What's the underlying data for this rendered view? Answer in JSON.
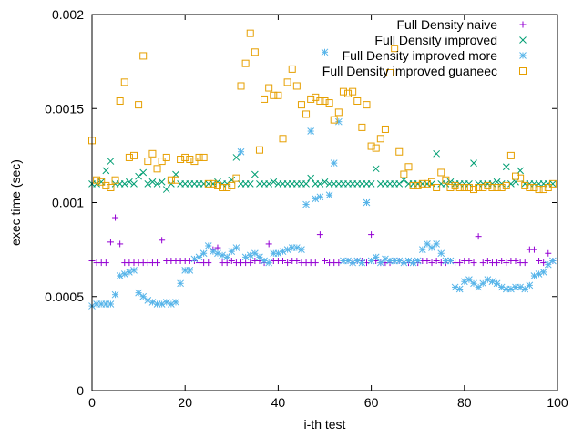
{
  "chart_data": {
    "type": "scatter",
    "title": "",
    "xlabel": "i-th test",
    "ylabel": "exec time (sec)",
    "xlim": [
      0,
      100
    ],
    "ylim": [
      0,
      0.002
    ],
    "x_ticks": [
      "0",
      "20",
      "40",
      "60",
      "80",
      "100"
    ],
    "y_ticks": [
      "0",
      "0.0005",
      "0.001",
      "0.0015",
      "0.002"
    ],
    "legend_position": "top-right",
    "grid": false,
    "x": [
      0,
      1,
      2,
      3,
      4,
      5,
      6,
      7,
      8,
      9,
      10,
      11,
      12,
      13,
      14,
      15,
      16,
      17,
      18,
      19,
      20,
      21,
      22,
      23,
      24,
      25,
      26,
      27,
      28,
      29,
      30,
      31,
      32,
      33,
      34,
      35,
      36,
      37,
      38,
      39,
      40,
      41,
      42,
      43,
      44,
      45,
      46,
      47,
      48,
      49,
      50,
      51,
      52,
      53,
      54,
      55,
      56,
      57,
      58,
      59,
      60,
      61,
      62,
      63,
      64,
      65,
      66,
      67,
      68,
      69,
      70,
      71,
      72,
      73,
      74,
      75,
      76,
      77,
      78,
      79,
      80,
      81,
      82,
      83,
      84,
      85,
      86,
      87,
      88,
      89,
      90,
      91,
      92,
      93,
      94,
      95,
      96,
      97,
      98,
      99
    ],
    "series": [
      {
        "name": "Full Density naive",
        "color": "#9400d3",
        "marker": "plus",
        "values": [
          0.00069,
          0.00068,
          0.00068,
          0.00068,
          0.00079,
          0.00092,
          0.00078,
          0.00068,
          0.00068,
          0.00068,
          0.00068,
          0.00068,
          0.00068,
          0.00068,
          0.00068,
          0.0008,
          0.00069,
          0.00069,
          0.00069,
          0.00069,
          0.00069,
          0.00069,
          0.00069,
          0.00068,
          0.00068,
          0.00068,
          0.00075,
          0.00076,
          0.00068,
          0.00068,
          0.00069,
          0.00068,
          0.00068,
          0.00068,
          0.00068,
          0.00069,
          0.00069,
          0.00068,
          0.00078,
          0.00069,
          0.00069,
          0.00069,
          0.00068,
          0.00069,
          0.00069,
          0.00068,
          0.00068,
          0.00068,
          0.00068,
          0.00083,
          0.00069,
          0.00068,
          0.00068,
          0.00068,
          0.00069,
          0.00069,
          0.00068,
          0.00069,
          0.00069,
          0.00068,
          0.00083,
          0.00069,
          0.00068,
          0.00068,
          0.00068,
          0.00069,
          0.00069,
          0.00068,
          0.00068,
          0.00068,
          0.00068,
          0.00069,
          0.00069,
          0.00068,
          0.00069,
          0.00068,
          0.00068,
          0.00069,
          0.00068,
          0.00068,
          0.00069,
          0.00069,
          0.00068,
          0.00082,
          0.00068,
          0.00069,
          0.00068,
          0.00068,
          0.00069,
          0.00068,
          0.00069,
          0.00069,
          0.00068,
          0.00068,
          0.00075,
          0.00075,
          0.00069,
          0.00068,
          0.00073,
          0.00069
        ]
      },
      {
        "name": "Full Density improved",
        "color": "#009e73",
        "marker": "cross",
        "values": [
          0.0011,
          0.0011,
          0.00111,
          0.00117,
          0.00122,
          0.0011,
          0.0011,
          0.0011,
          0.00111,
          0.0011,
          0.00114,
          0.00116,
          0.0011,
          0.00111,
          0.0011,
          0.00111,
          0.00107,
          0.0011,
          0.00115,
          0.0011,
          0.0011,
          0.0011,
          0.0011,
          0.0011,
          0.0011,
          0.0011,
          0.0011,
          0.00111,
          0.0011,
          0.0011,
          0.00112,
          0.00124,
          0.0011,
          0.0011,
          0.0011,
          0.00115,
          0.0011,
          0.0011,
          0.0011,
          0.00111,
          0.0011,
          0.0011,
          0.0011,
          0.0011,
          0.0011,
          0.0011,
          0.0011,
          0.00113,
          0.0011,
          0.0011,
          0.00111,
          0.0011,
          0.0011,
          0.0011,
          0.0011,
          0.0011,
          0.0011,
          0.0011,
          0.0011,
          0.0011,
          0.0011,
          0.00118,
          0.0011,
          0.0011,
          0.0011,
          0.0011,
          0.0011,
          0.00112,
          0.0011,
          0.0011,
          0.0011,
          0.0011,
          0.0011,
          0.0011,
          0.00126,
          0.0011,
          0.0011,
          0.00111,
          0.0011,
          0.0011,
          0.0011,
          0.0011,
          0.00121,
          0.0011,
          0.0011,
          0.0011,
          0.0011,
          0.00111,
          0.0011,
          0.00119,
          0.0011,
          0.00111,
          0.00117,
          0.0011,
          0.0011,
          0.0011,
          0.0011,
          0.0011,
          0.0011,
          0.0011
        ]
      },
      {
        "name": "Full Density improved more",
        "color": "#56b4e9",
        "marker": "star",
        "values": [
          0.00045,
          0.00046,
          0.00046,
          0.00046,
          0.00046,
          0.00051,
          0.00061,
          0.00062,
          0.00063,
          0.00064,
          0.00052,
          0.0005,
          0.00048,
          0.00047,
          0.00046,
          0.00046,
          0.00047,
          0.00046,
          0.00047,
          0.00057,
          0.00064,
          0.00064,
          0.0007,
          0.00071,
          0.00073,
          0.00077,
          0.00074,
          0.00073,
          0.00072,
          0.00071,
          0.00074,
          0.00076,
          0.00127,
          0.00071,
          0.00072,
          0.00073,
          0.00071,
          0.00069,
          0.00068,
          0.00073,
          0.00073,
          0.00074,
          0.00075,
          0.00076,
          0.00076,
          0.00075,
          0.00099,
          0.00138,
          0.00102,
          0.00103,
          0.0018,
          0.00104,
          0.00121,
          0.00143,
          0.00069,
          0.00069,
          0.00068,
          0.00069,
          0.00068,
          0.001,
          0.00069,
          0.00071,
          0.00068,
          0.0007,
          0.00069,
          0.00069,
          0.00069,
          0.00068,
          0.00069,
          0.00068,
          0.00069,
          0.00075,
          0.00078,
          0.00076,
          0.00078,
          0.00073,
          0.00069,
          0.00069,
          0.00055,
          0.00054,
          0.00058,
          0.00059,
          0.00057,
          0.00055,
          0.00057,
          0.00059,
          0.00058,
          0.00057,
          0.00055,
          0.00054,
          0.00054,
          0.00055,
          0.00055,
          0.00054,
          0.00056,
          0.00061,
          0.00062,
          0.00063,
          0.00067,
          0.00069
        ]
      },
      {
        "name": "Full Density improved guaneec",
        "color": "#e69f00",
        "marker": "square",
        "values": [
          0.00133,
          0.00112,
          0.00111,
          0.00109,
          0.00108,
          0.00112,
          0.00154,
          0.00164,
          0.00124,
          0.00125,
          0.00152,
          0.00178,
          0.00122,
          0.00126,
          0.00118,
          0.00122,
          0.00124,
          0.00112,
          0.00112,
          0.00123,
          0.00124,
          0.00123,
          0.00122,
          0.00124,
          0.00124,
          0.0011,
          0.0011,
          0.00109,
          0.00108,
          0.00108,
          0.00109,
          0.00113,
          0.00162,
          0.00174,
          0.0019,
          0.0018,
          0.00128,
          0.00155,
          0.00161,
          0.00157,
          0.00157,
          0.00134,
          0.00164,
          0.00171,
          0.00162,
          0.00152,
          0.00147,
          0.00155,
          0.00156,
          0.00154,
          0.00154,
          0.00153,
          0.00144,
          0.00148,
          0.00159,
          0.00158,
          0.00159,
          0.00154,
          0.0014,
          0.00152,
          0.0013,
          0.00129,
          0.00134,
          0.00139,
          0.00169,
          0.00182,
          0.00127,
          0.00115,
          0.00119,
          0.00109,
          0.00109,
          0.0011,
          0.0011,
          0.00111,
          0.00108,
          0.00116,
          0.00112,
          0.00108,
          0.00109,
          0.00108,
          0.00108,
          0.00108,
          0.00107,
          0.00108,
          0.00108,
          0.00109,
          0.00108,
          0.00108,
          0.00108,
          0.00109,
          0.00125,
          0.00114,
          0.00113,
          0.00109,
          0.00108,
          0.00108,
          0.00107,
          0.00107,
          0.00108,
          0.0011
        ]
      }
    ]
  }
}
